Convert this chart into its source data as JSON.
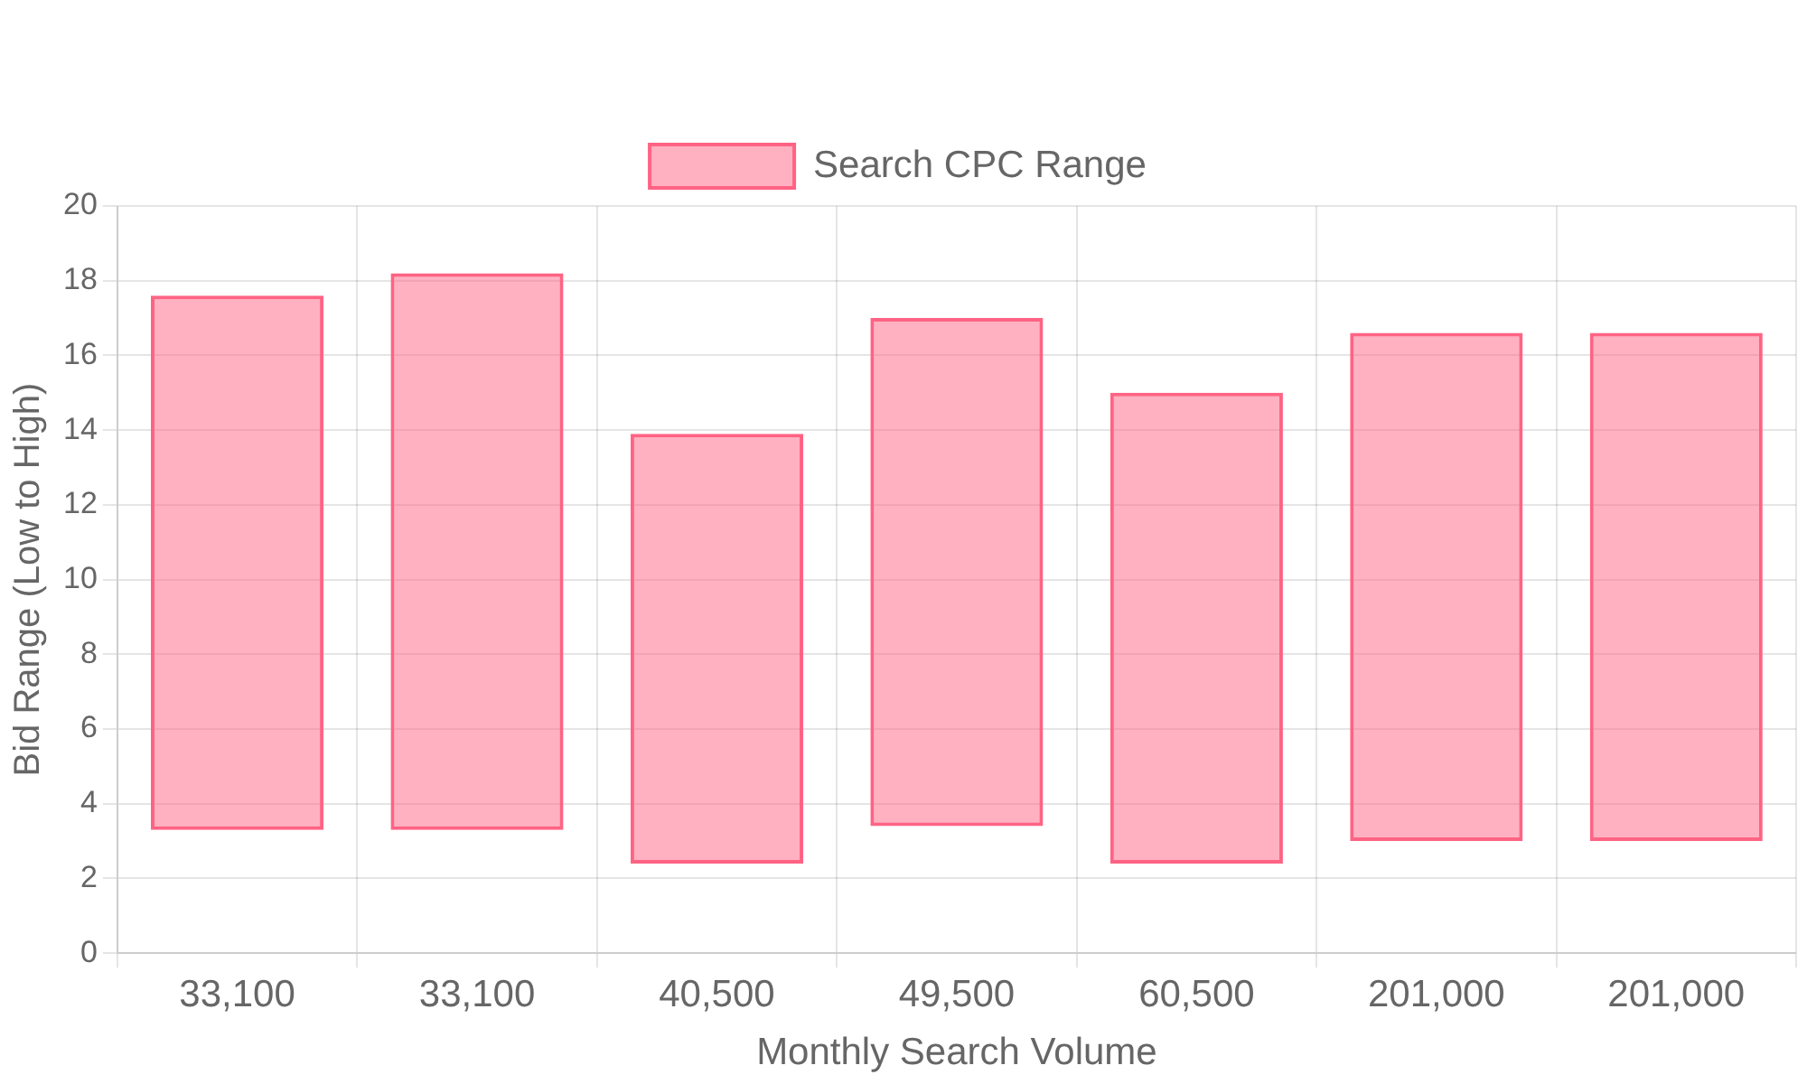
{
  "chart_data": {
    "type": "bar",
    "xlabel": "Monthly Search Volume",
    "ylabel": "Bid Range (Low to High)",
    "categories": [
      "33,100",
      "33,100",
      "40,500",
      "49,500",
      "60,500",
      "201,000",
      "201,000"
    ],
    "series": [
      {
        "name": "Search CPC Range",
        "color": "#ff6384",
        "values": [
          14.3,
          14.9,
          11.5,
          13.6,
          12.6,
          13.6,
          13.6
        ],
        "base": [
          3.3,
          3.3,
          2.4,
          3.4,
          2.4,
          3.0,
          3.0
        ]
      }
    ],
    "ylim": [
      0,
      20
    ],
    "yticks": [
      0,
      2,
      4,
      6,
      8,
      10,
      12,
      14,
      16,
      18,
      20
    ],
    "grid": true,
    "legend": "top"
  }
}
